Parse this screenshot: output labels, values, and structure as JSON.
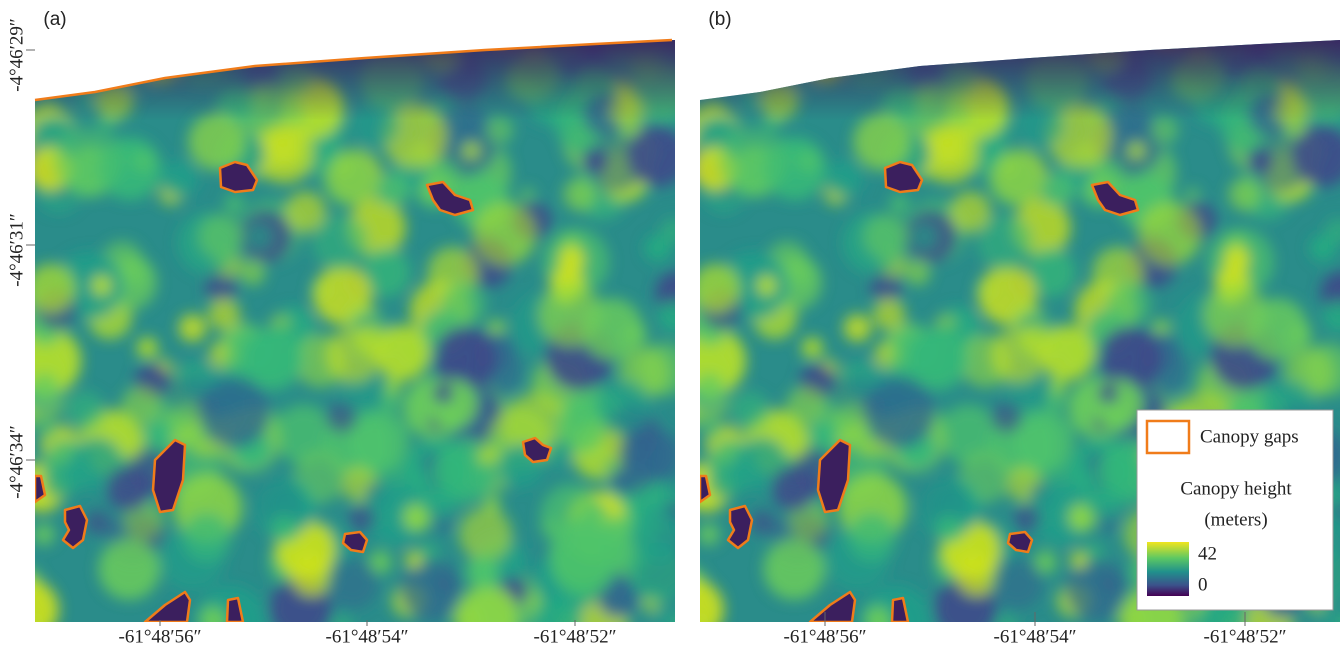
{
  "panels": [
    {
      "label": "(a)",
      "x_ticks": [
        "-61°48′56″",
        "-61°48′54″",
        "-61°48′52″"
      ],
      "y_ticks": [
        "-4°46′29″",
        "-4°46′31″",
        "-4°46′34″"
      ]
    },
    {
      "label": "(b)",
      "x_ticks": [
        "-61°48′56″",
        "-61°48′54″",
        "-61°48′52″"
      ]
    }
  ],
  "legend": {
    "gaps_label": "Canopy gaps",
    "height_title": "Canopy height",
    "height_unit": "(meters)",
    "max": 42,
    "min": 0
  }
}
